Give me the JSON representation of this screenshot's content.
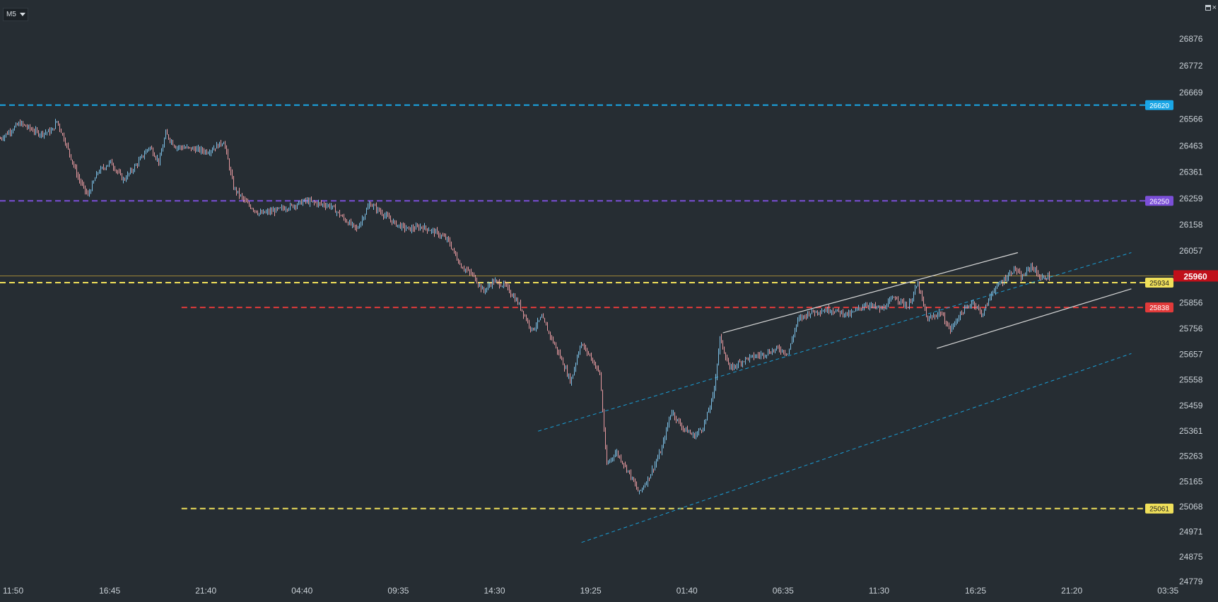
{
  "toolbar": {
    "timeframe_label": "M5"
  },
  "window_controls": {
    "restore_icon": "restore-icon",
    "close_icon": "close-icon",
    "close_glyph": "×"
  },
  "colors": {
    "background": "#262d33",
    "text": "#c9d0d6",
    "bull_candle": "#7cc0e6",
    "bear_candle": "#e89aa0",
    "level_cyan": "#1aa6e6",
    "level_purple": "#7b4fd8",
    "level_yellow": "#f0e05a",
    "level_red": "#e23a3a",
    "price_current": "#c0101a",
    "trendline_white": "#d8d8d8",
    "channel_blue": "#1a9ed6"
  },
  "chart_data": {
    "type": "candlestick",
    "instrument_timeframe": "M5",
    "ylim": [
      24779,
      26980
    ],
    "y_ticks": [
      "26876",
      "26772",
      "26669",
      "26566",
      "26463",
      "26361",
      "26259",
      "26158",
      "26057",
      "25856",
      "25756",
      "25657",
      "25558",
      "25459",
      "25361",
      "25263",
      "25165",
      "25068",
      "24971",
      "24875",
      "24779"
    ],
    "x_ticks": [
      "11:50",
      "16:45",
      "21:40",
      "04:40",
      "09:35",
      "14:30",
      "19:25",
      "01:40",
      "06:35",
      "11:30",
      "16:25",
      "21:20",
      "03:35"
    ],
    "current_price": {
      "value": 25960,
      "label": "25960"
    },
    "horizontal_levels": [
      {
        "value": 26620,
        "label": "26620",
        "color": "#1aa6e6",
        "from_index": 0
      },
      {
        "value": 26250,
        "label": "26250",
        "color": "#7b4fd8",
        "from_index": 0
      },
      {
        "value": 25934,
        "label": "25934",
        "color": "#f0e05a",
        "from_index": 0
      },
      {
        "value": 25838,
        "label": "25838",
        "color": "#e23a3a",
        "from_index": 2
      },
      {
        "value": 25061,
        "label": "25061",
        "color": "#f0e05a",
        "from_index": 2
      }
    ],
    "price_path": [
      [
        0,
        26490
      ],
      [
        3,
        26550
      ],
      [
        6,
        26510
      ],
      [
        8,
        26520
      ],
      [
        8.7,
        26560
      ],
      [
        10,
        26480
      ],
      [
        12,
        26340
      ],
      [
        13.5,
        26270
      ],
      [
        15,
        26360
      ],
      [
        17,
        26400
      ],
      [
        19,
        26330
      ],
      [
        21,
        26390
      ],
      [
        23,
        26460
      ],
      [
        24.5,
        26400
      ],
      [
        25.5,
        26510
      ],
      [
        27,
        26460
      ],
      [
        30,
        26450
      ],
      [
        32,
        26440
      ],
      [
        34.5,
        26480
      ],
      [
        36,
        26300
      ],
      [
        38,
        26240
      ],
      [
        40,
        26200
      ],
      [
        42,
        26210
      ],
      [
        45,
        26230
      ],
      [
        47,
        26250
      ],
      [
        49,
        26240
      ],
      [
        51,
        26230
      ],
      [
        53,
        26180
      ],
      [
        55,
        26140
      ],
      [
        57,
        26240
      ],
      [
        59,
        26200
      ],
      [
        61,
        26160
      ],
      [
        63,
        26140
      ],
      [
        65,
        26150
      ],
      [
        67,
        26130
      ],
      [
        69,
        26100
      ],
      [
        71,
        26000
      ],
      [
        73,
        25960
      ],
      [
        74.5,
        25900
      ],
      [
        76,
        25940
      ],
      [
        78,
        25920
      ],
      [
        80,
        25850
      ],
      [
        82,
        25750
      ],
      [
        83.5,
        25800
      ],
      [
        85,
        25720
      ],
      [
        86.5,
        25640
      ],
      [
        88,
        25550
      ],
      [
        89.5,
        25700
      ],
      [
        91,
        25650
      ],
      [
        92.5,
        25580
      ],
      [
        93.5,
        25230
      ],
      [
        95,
        25280
      ],
      [
        97,
        25200
      ],
      [
        98.5,
        25120
      ],
      [
        100,
        25180
      ],
      [
        102,
        25290
      ],
      [
        103.5,
        25440
      ],
      [
        105,
        25380
      ],
      [
        107,
        25340
      ],
      [
        108.5,
        25380
      ],
      [
        110,
        25500
      ],
      [
        111,
        25720
      ],
      [
        112.5,
        25600
      ],
      [
        115,
        25640
      ],
      [
        118,
        25660
      ],
      [
        120,
        25680
      ],
      [
        121.5,
        25660
      ],
      [
        123,
        25790
      ],
      [
        125,
        25820
      ],
      [
        128,
        25830
      ],
      [
        131,
        25810
      ],
      [
        133.5,
        25850
      ],
      [
        136,
        25830
      ],
      [
        138,
        25880
      ],
      [
        140,
        25840
      ],
      [
        141.5,
        25930
      ],
      [
        143,
        25790
      ],
      [
        145,
        25820
      ],
      [
        146.5,
        25750
      ],
      [
        148,
        25810
      ],
      [
        150,
        25860
      ],
      [
        151.5,
        25810
      ],
      [
        153,
        25900
      ],
      [
        155,
        25950
      ],
      [
        156.5,
        25990
      ],
      [
        157.5,
        25950
      ],
      [
        159,
        26000
      ],
      [
        160.5,
        25950
      ],
      [
        162,
        25960
      ]
    ],
    "trendlines": [
      {
        "from": [
          111.5,
          25740
        ],
        "to": [
          157,
          26050
        ],
        "color": "#d8d8d8"
      },
      {
        "from": [
          144.5,
          25680
        ],
        "to": [
          174.5,
          25910
        ],
        "color": "#d8d8d8"
      },
      {
        "from": [
          83,
          25360
        ],
        "to": [
          174.5,
          26050
        ],
        "color": "#1a9ed6",
        "dashed": true
      },
      {
        "from": [
          89.7,
          24930
        ],
        "to": [
          174.5,
          25660
        ],
        "color": "#1a9ed6",
        "dashed": true
      }
    ]
  }
}
